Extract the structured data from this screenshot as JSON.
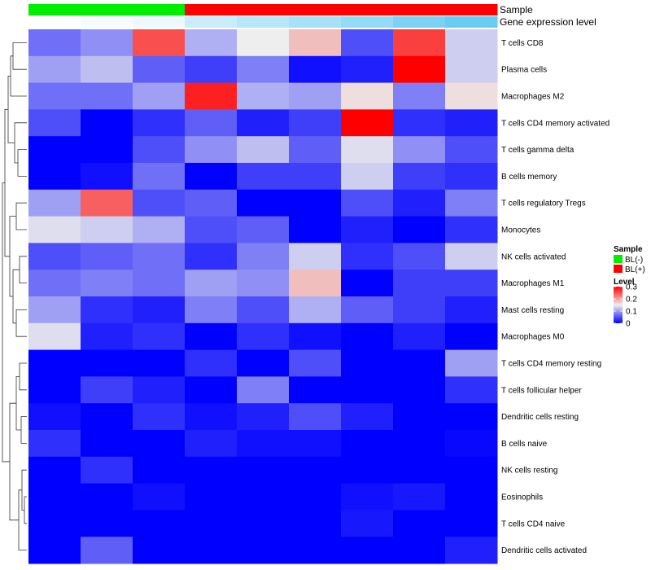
{
  "chart_data": {
    "type": "heatmap",
    "rows": [
      "T cells CD8",
      "Plasma cells",
      "Macrophages M2",
      "T cells CD4 memory activated",
      "T cells gamma delta",
      "B cells memory",
      "T cells regulatory  Tregs",
      "Monocytes",
      "NK cells activated",
      "Macrophages M1",
      "Mast cells resting",
      "Macrophages M0",
      "T cells CD4 memory resting",
      "T cells follicular helper",
      "Dendritic cells resting",
      "B cells naive",
      "NK cells resting",
      "Eosinophils",
      "T cells CD4 naive",
      "Dendritic cells activated"
    ],
    "values": [
      [
        0.07,
        0.09,
        0.25,
        0.11,
        0.15,
        0.18,
        0.05,
        0.26,
        0.13
      ],
      [
        0.1,
        0.12,
        0.06,
        0.04,
        0.08,
        0.01,
        0.02,
        0.3,
        0.13
      ],
      [
        0.07,
        0.07,
        0.1,
        0.28,
        0.11,
        0.1,
        0.16,
        0.08,
        0.16
      ],
      [
        0.05,
        0.0,
        0.03,
        0.06,
        0.02,
        0.04,
        0.3,
        0.03,
        0.02
      ],
      [
        0.0,
        0.0,
        0.05,
        0.09,
        0.12,
        0.06,
        0.14,
        0.09,
        0.05
      ],
      [
        0.0,
        0.01,
        0.07,
        0.0,
        0.04,
        0.04,
        0.13,
        0.04,
        0.03
      ],
      [
        0.1,
        0.24,
        0.05,
        0.06,
        0.0,
        0.0,
        0.05,
        0.02,
        0.08
      ],
      [
        0.14,
        0.13,
        0.11,
        0.05,
        0.06,
        0.0,
        0.02,
        0.0,
        0.03
      ],
      [
        0.05,
        0.06,
        0.07,
        0.03,
        0.08,
        0.13,
        0.03,
        0.05,
        0.13
      ],
      [
        0.07,
        0.08,
        0.07,
        0.1,
        0.09,
        0.18,
        0.0,
        0.04,
        0.04
      ],
      [
        0.1,
        0.03,
        0.02,
        0.08,
        0.05,
        0.11,
        0.06,
        0.04,
        0.02
      ],
      [
        0.14,
        0.02,
        0.03,
        0.0,
        0.03,
        0.01,
        0.0,
        0.02,
        0.0
      ],
      [
        0.0,
        0.0,
        0.0,
        0.03,
        0.0,
        0.05,
        0.0,
        0.0,
        0.1
      ],
      [
        0.0,
        0.04,
        0.02,
        0.0,
        0.08,
        0.0,
        0.0,
        0.0,
        0.03
      ],
      [
        0.01,
        0.0,
        0.03,
        0.01,
        0.02,
        0.05,
        0.02,
        0.0,
        0.0
      ],
      [
        0.03,
        0.0,
        0.0,
        0.02,
        0.01,
        0.01,
        0.0,
        0.0,
        0.005
      ],
      [
        0.0,
        0.03,
        0.0,
        0.0,
        0.0,
        0.0,
        0.0,
        0.0,
        0.0
      ],
      [
        0.0,
        0.0,
        0.01,
        0.0,
        0.0,
        0.0,
        0.01,
        0.015,
        0.0
      ],
      [
        0.0,
        0.0,
        0.0,
        0.0,
        0.0,
        0.0,
        0.015,
        0.0,
        0.0
      ],
      [
        0.0,
        0.06,
        0.0,
        0.0,
        0.0,
        0.0,
        0.0,
        0.0,
        0.02
      ]
    ],
    "sample_groups": [
      "BL(-)",
      "BL(-)",
      "BL(-)",
      "BL(+)",
      "BL(+)",
      "BL(+)",
      "BL(+)",
      "BL(+)",
      "BL(+)"
    ],
    "gene_expression_level": [
      0.0,
      0.05,
      0.1,
      0.3,
      0.4,
      0.5,
      0.6,
      0.75,
      0.85
    ],
    "annotation_titles": [
      "Sample",
      "Gene expression level"
    ],
    "color_scale": {
      "min": 0,
      "max": 0.3,
      "low": "#0000ff",
      "mid": "#eeeeee",
      "high": "#ff0000",
      "mid_value": 0.15
    },
    "legends": {
      "sample": {
        "title": "Sample",
        "entries": [
          {
            "label": "BL(-)",
            "color": "#00ee00"
          },
          {
            "label": "BL(+)",
            "color": "#ff0000"
          }
        ]
      },
      "level": {
        "title": "Level",
        "ticks": [
          "0.3",
          "0.2",
          "0.1",
          "0"
        ],
        "tick_values": [
          0.3,
          0.2,
          0.1,
          0
        ]
      }
    },
    "dendrogram": "rows-left",
    "legend_position": "right"
  }
}
